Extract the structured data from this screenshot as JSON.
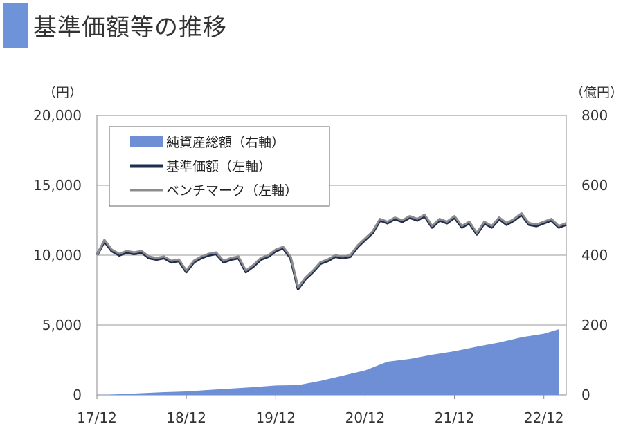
{
  "page": {
    "title": "基準価額等の推移"
  },
  "colors": {
    "title_accent": "#6f93d9",
    "net_assets_fill": "#6e8fd6",
    "nav_line": "#1f2d4e",
    "benchmark_line": "#8c8c8c",
    "gridline": "#9a9a9a",
    "axis": "#888888"
  },
  "chart_data": {
    "type": "line",
    "left_unit": "（円）",
    "right_unit": "（億円）",
    "x_ticks": [
      "17/12",
      "18/12",
      "19/12",
      "20/12",
      "21/12",
      "22/12"
    ],
    "x_range": [
      "2017-12",
      "2023-03"
    ],
    "ylim_left": [
      0,
      20000
    ],
    "yticks_left": [
      "0",
      "5,000",
      "10,000",
      "15,000",
      "20,000"
    ],
    "ylim_right": [
      0,
      800
    ],
    "yticks_right": [
      "0",
      "200",
      "400",
      "600",
      "800"
    ],
    "grid": true,
    "legend_position": "top-left",
    "series": [
      {
        "name": "純資産総額（右軸）",
        "type": "area",
        "axis": "right",
        "points": [
          [
            "2017-12",
            0
          ],
          [
            "2018-03",
            2
          ],
          [
            "2018-06",
            5
          ],
          [
            "2018-09",
            8
          ],
          [
            "2018-12",
            10
          ],
          [
            "2019-03",
            14
          ],
          [
            "2019-06",
            18
          ],
          [
            "2019-09",
            22
          ],
          [
            "2019-12",
            27
          ],
          [
            "2020-03",
            28
          ],
          [
            "2020-06",
            40
          ],
          [
            "2020-09",
            55
          ],
          [
            "2020-12",
            70
          ],
          [
            "2021-03",
            95
          ],
          [
            "2021-06",
            103
          ],
          [
            "2021-09",
            115
          ],
          [
            "2021-12",
            125
          ],
          [
            "2022-03",
            138
          ],
          [
            "2022-06",
            150
          ],
          [
            "2022-09",
            165
          ],
          [
            "2022-12",
            175
          ],
          [
            "2023-02",
            188
          ]
        ]
      },
      {
        "name": "基準価額（左軸）",
        "type": "line",
        "axis": "left",
        "points": [
          [
            "2017-12",
            10000
          ],
          [
            "2018-01",
            11000
          ],
          [
            "2018-02",
            10300
          ],
          [
            "2018-03",
            10000
          ],
          [
            "2018-04",
            10200
          ],
          [
            "2018-05",
            10100
          ],
          [
            "2018-06",
            10200
          ],
          [
            "2018-07",
            9800
          ],
          [
            "2018-08",
            9700
          ],
          [
            "2018-09",
            9800
          ],
          [
            "2018-10",
            9500
          ],
          [
            "2018-11",
            9600
          ],
          [
            "2018-12",
            8800
          ],
          [
            "2019-01",
            9500
          ],
          [
            "2019-02",
            9800
          ],
          [
            "2019-03",
            10000
          ],
          [
            "2019-04",
            10100
          ],
          [
            "2019-05",
            9500
          ],
          [
            "2019-06",
            9700
          ],
          [
            "2019-07",
            9800
          ],
          [
            "2019-08",
            8800
          ],
          [
            "2019-09",
            9200
          ],
          [
            "2019-10",
            9700
          ],
          [
            "2019-11",
            9900
          ],
          [
            "2019-12",
            10300
          ],
          [
            "2020-01",
            10500
          ],
          [
            "2020-02",
            9800
          ],
          [
            "2020-03",
            7600
          ],
          [
            "2020-04",
            8300
          ],
          [
            "2020-05",
            8800
          ],
          [
            "2020-06",
            9400
          ],
          [
            "2020-07",
            9600
          ],
          [
            "2020-08",
            9900
          ],
          [
            "2020-09",
            9800
          ],
          [
            "2020-10",
            9900
          ],
          [
            "2020-11",
            10600
          ],
          [
            "2020-12",
            11100
          ],
          [
            "2021-01",
            11600
          ],
          [
            "2021-02",
            12500
          ],
          [
            "2021-03",
            12300
          ],
          [
            "2021-04",
            12600
          ],
          [
            "2021-05",
            12400
          ],
          [
            "2021-06",
            12700
          ],
          [
            "2021-07",
            12500
          ],
          [
            "2021-08",
            12800
          ],
          [
            "2021-09",
            12000
          ],
          [
            "2021-10",
            12500
          ],
          [
            "2021-11",
            12300
          ],
          [
            "2021-12",
            12700
          ],
          [
            "2022-01",
            12000
          ],
          [
            "2022-02",
            12300
          ],
          [
            "2022-03",
            11500
          ],
          [
            "2022-04",
            12300
          ],
          [
            "2022-05",
            12000
          ],
          [
            "2022-06",
            12600
          ],
          [
            "2022-07",
            12200
          ],
          [
            "2022-08",
            12500
          ],
          [
            "2022-09",
            12900
          ],
          [
            "2022-10",
            12200
          ],
          [
            "2022-11",
            12100
          ],
          [
            "2022-12",
            12300
          ],
          [
            "2023-01",
            12500
          ],
          [
            "2023-02",
            12000
          ],
          [
            "2023-03",
            12200
          ]
        ]
      },
      {
        "name": "ベンチマーク（左軸）",
        "type": "line",
        "axis": "left",
        "points": [
          [
            "2017-12",
            10000
          ],
          [
            "2018-01",
            11100
          ],
          [
            "2018-02",
            10400
          ],
          [
            "2018-03",
            10100
          ],
          [
            "2018-04",
            10300
          ],
          [
            "2018-05",
            10200
          ],
          [
            "2018-06",
            10300
          ],
          [
            "2018-07",
            9900
          ],
          [
            "2018-08",
            9800
          ],
          [
            "2018-09",
            9900
          ],
          [
            "2018-10",
            9600
          ],
          [
            "2018-11",
            9700
          ],
          [
            "2018-12",
            8900
          ],
          [
            "2019-01",
            9600
          ],
          [
            "2019-02",
            9900
          ],
          [
            "2019-03",
            10100
          ],
          [
            "2019-04",
            10200
          ],
          [
            "2019-05",
            9600
          ],
          [
            "2019-06",
            9800
          ],
          [
            "2019-07",
            9900
          ],
          [
            "2019-08",
            8900
          ],
          [
            "2019-09",
            9300
          ],
          [
            "2019-10",
            9800
          ],
          [
            "2019-11",
            10000
          ],
          [
            "2019-12",
            10400
          ],
          [
            "2020-01",
            10600
          ],
          [
            "2020-02",
            9900
          ],
          [
            "2020-03",
            7700
          ],
          [
            "2020-04",
            8400
          ],
          [
            "2020-05",
            8900
          ],
          [
            "2020-06",
            9500
          ],
          [
            "2020-07",
            9700
          ],
          [
            "2020-08",
            10000
          ],
          [
            "2020-09",
            9900
          ],
          [
            "2020-10",
            10000
          ],
          [
            "2020-11",
            10700
          ],
          [
            "2020-12",
            11200
          ],
          [
            "2021-01",
            11700
          ],
          [
            "2021-02",
            12600
          ],
          [
            "2021-03",
            12400
          ],
          [
            "2021-04",
            12700
          ],
          [
            "2021-05",
            12500
          ],
          [
            "2021-06",
            12800
          ],
          [
            "2021-07",
            12600
          ],
          [
            "2021-08",
            12900
          ],
          [
            "2021-09",
            12100
          ],
          [
            "2021-10",
            12600
          ],
          [
            "2021-11",
            12400
          ],
          [
            "2021-12",
            12800
          ],
          [
            "2022-01",
            12100
          ],
          [
            "2022-02",
            12400
          ],
          [
            "2022-03",
            11600
          ],
          [
            "2022-04",
            12400
          ],
          [
            "2022-05",
            12100
          ],
          [
            "2022-06",
            12700
          ],
          [
            "2022-07",
            12300
          ],
          [
            "2022-08",
            12600
          ],
          [
            "2022-09",
            13000
          ],
          [
            "2022-10",
            12300
          ],
          [
            "2022-11",
            12200
          ],
          [
            "2022-12",
            12400
          ],
          [
            "2023-01",
            12600
          ],
          [
            "2023-02",
            12100
          ],
          [
            "2023-03",
            12300
          ]
        ]
      }
    ]
  }
}
